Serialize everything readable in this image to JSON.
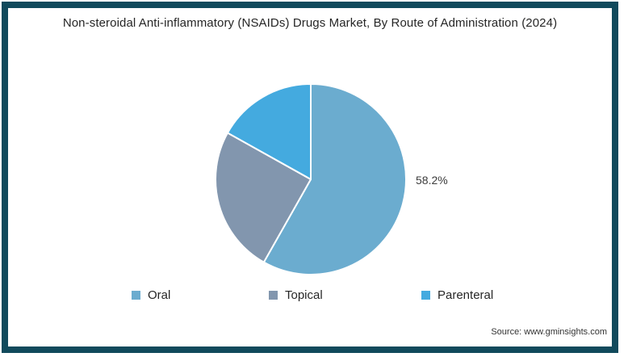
{
  "title": "Non-steroidal Anti-inflammatory (NSAIDs) Drugs Market, By Route of Administration (2024)",
  "source": "Source: www.gminsights.com",
  "colors": {
    "frame_border": "#114A5C",
    "background": "#FFFFFF",
    "title_text": "#262626",
    "data_label_text": "#3D3D3D"
  },
  "chart_data": {
    "type": "pie",
    "title": "Non-steroidal Anti-inflammatory (NSAIDs) Drugs Market, By Route of Administration (2024)",
    "start_angle": "top",
    "direction": "clockwise",
    "legend_position": "bottom",
    "slices": [
      {
        "label": "Oral",
        "value": 58.2,
        "color": "#6BACCF",
        "data_label": "58.2%",
        "estimated": false
      },
      {
        "label": "Topical",
        "value": 24.9,
        "color": "#8296AE",
        "data_label": "",
        "estimated": true
      },
      {
        "label": "Parenteral",
        "value": 16.9,
        "color": "#44AADF",
        "data_label": "",
        "estimated": true
      }
    ]
  },
  "legend": {
    "items": [
      {
        "label": "Oral",
        "color": "#6BACCF"
      },
      {
        "label": "Topical",
        "color": "#8296AE"
      },
      {
        "label": "Parenteral",
        "color": "#44AADF"
      }
    ]
  }
}
